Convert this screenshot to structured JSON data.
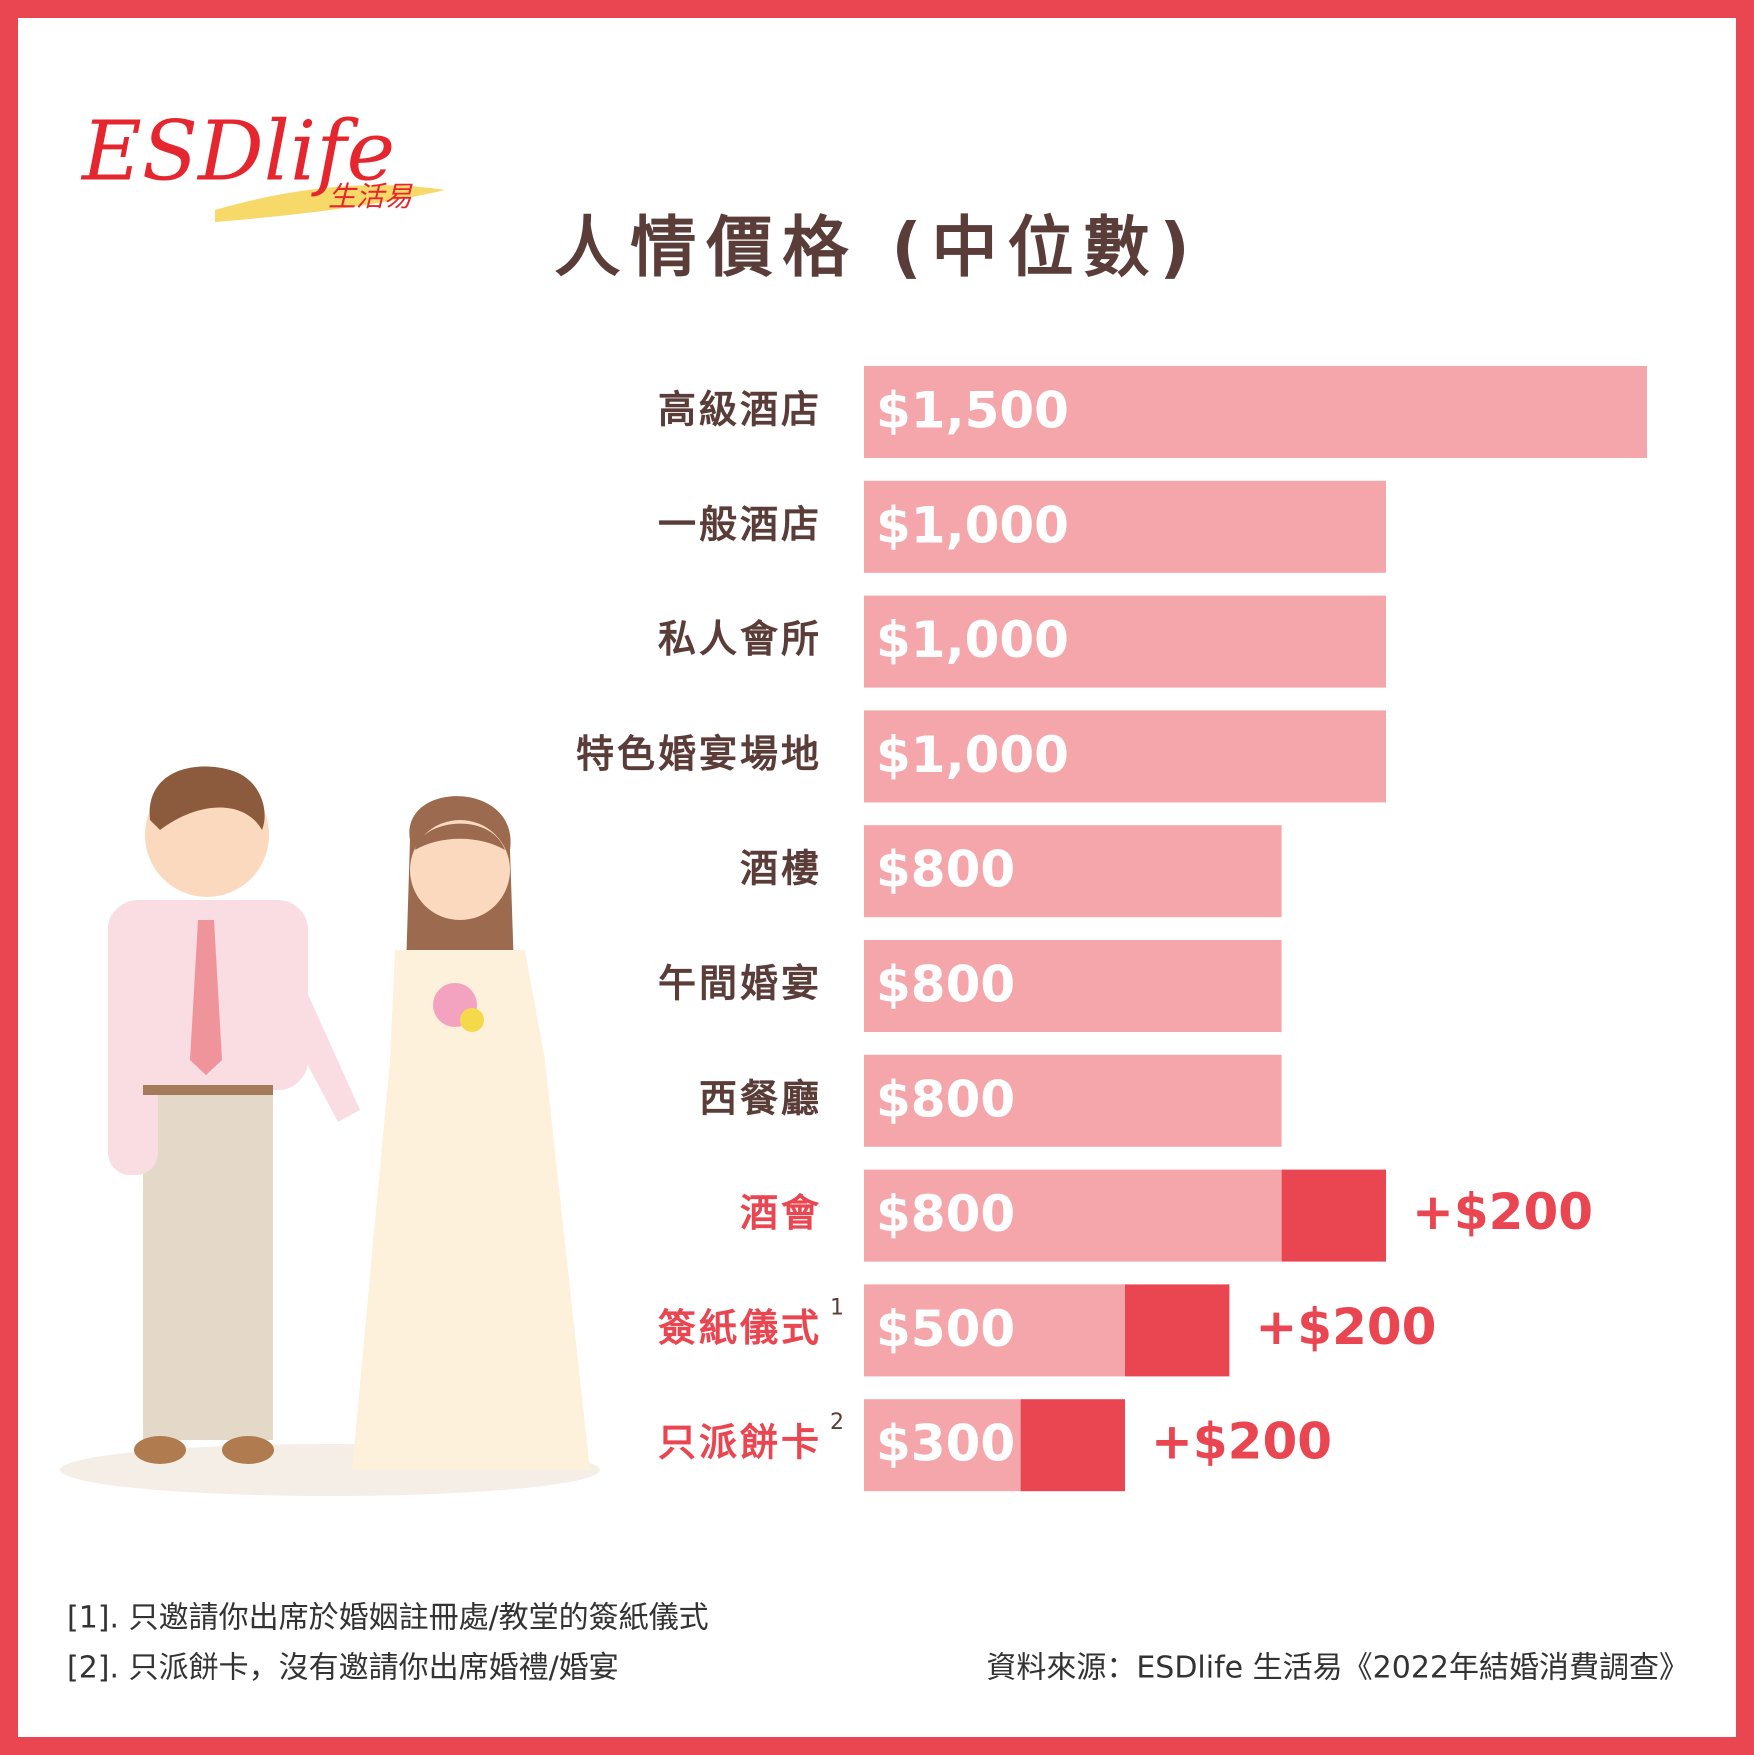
{
  "logo": {
    "text": "ESDlife",
    "subtext": "生活易"
  },
  "chart_data": {
    "type": "hbar-stacked",
    "title": "人情價格 (中位數)",
    "categories": [
      "高級酒店",
      "一般酒店",
      "私人會所",
      "特色婚宴場地",
      "酒樓",
      "午間婚宴",
      "西餐廳",
      "酒會",
      "簽紙儀式",
      "只派餅卡"
    ],
    "category_notes": [
      null,
      null,
      null,
      null,
      null,
      null,
      null,
      null,
      "1",
      "2"
    ],
    "series": [
      {
        "color": "#f4a6ab",
        "values": [
          1500,
          1000,
          1000,
          1000,
          800,
          800,
          800,
          800,
          500,
          300
        ],
        "value_labels": [
          "$1,500",
          "$1,000",
          "$1,000",
          "$1,000",
          "$800",
          "$800",
          "$800",
          "$800",
          "$500",
          "$300"
        ]
      },
      {
        "color": "#e94651",
        "values": [
          null,
          null,
          null,
          null,
          null,
          null,
          null,
          200,
          200,
          200
        ],
        "value_labels": [
          null,
          null,
          null,
          null,
          null,
          null,
          null,
          "+$200",
          "+$200",
          "+$200"
        ]
      }
    ]
  },
  "footnotes": [
    "[1]. 只邀請你出席於婚姻註冊處/教堂的簽紙儀式",
    "[2]. 只派餅卡，沒有邀請你出席婚禮/婚宴"
  ],
  "source": "資料來源：ESDlife 生活易《2022年結婚消費調查》"
}
